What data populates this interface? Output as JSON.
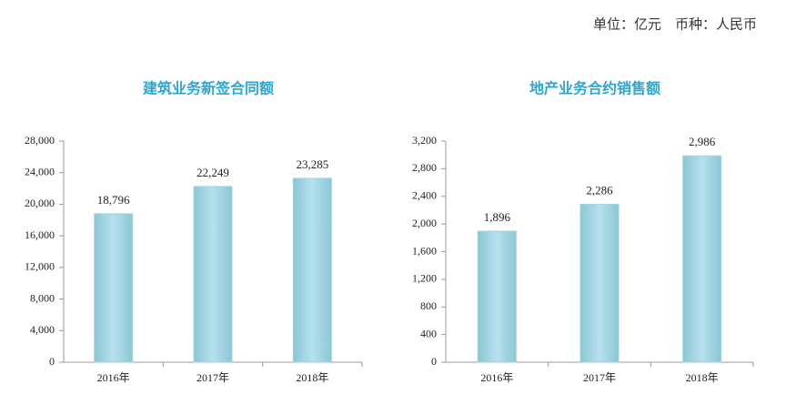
{
  "header": {
    "unit_note": "单位：亿元　币种：人民币"
  },
  "chart_data": [
    {
      "type": "bar",
      "title": "建筑业务新签合同额",
      "categories": [
        "2016年",
        "2017年",
        "2018年"
      ],
      "values": [
        18796,
        22249,
        23285
      ],
      "value_labels": [
        "18,796",
        "22,249",
        "23,285"
      ],
      "color": "#9fd4e2",
      "ylim": [
        0,
        28000
      ],
      "yticks": [
        0,
        {
          "value": 4000,
          "label": "4,000"
        },
        {
          "value": 8000,
          "label": "8,000"
        },
        {
          "value": 12000,
          "label": "12,000"
        },
        {
          "value": 16000,
          "label": "16,000"
        },
        {
          "value": 20000,
          "label": "20,000"
        },
        {
          "value": 24000,
          "label": "24,000"
        },
        {
          "value": 28000,
          "label": "28,000"
        }
      ],
      "grid": false
    },
    {
      "type": "bar",
      "title": "地产业务合约销售额",
      "categories": [
        "2016年",
        "2017年",
        "2018年"
      ],
      "values": [
        1896,
        2286,
        2986
      ],
      "value_labels": [
        "1,896",
        "2,286",
        "2,986"
      ],
      "color": "#9fd4e2",
      "ylim": [
        0,
        3200
      ],
      "yticks": [
        0,
        400,
        800,
        {
          "value": 1200,
          "label": "1,200"
        },
        {
          "value": 1600,
          "label": "1,600"
        },
        {
          "value": 2000,
          "label": "2,000"
        },
        {
          "value": 2400,
          "label": "2,400"
        },
        {
          "value": 2800,
          "label": "2,800"
        },
        {
          "value": 3200,
          "label": "3,200"
        }
      ],
      "grid": false
    }
  ]
}
